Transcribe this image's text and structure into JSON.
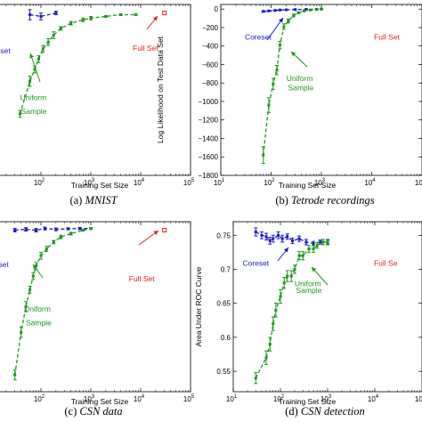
{
  "colors": {
    "coreset": "#1a1acc",
    "uniform": "#1a9a1a",
    "full": "#dd2222"
  },
  "chart_data": [
    {
      "type": "line",
      "caption_prefix": "(a)",
      "caption_title": "MNIST",
      "xlabel": "Training Set Size",
      "ylabel": "",
      "xscale": "log",
      "xlim": [
        10,
        100000
      ],
      "ylim": [
        0,
        1
      ],
      "xticks": [
        {
          "v": 100,
          "label": "10",
          "exp": "2"
        },
        {
          "v": 1000,
          "label": "10",
          "exp": "3"
        },
        {
          "v": 10000,
          "label": "10",
          "exp": "4"
        },
        {
          "v": 100000,
          "label": "10",
          "exp": "5"
        }
      ],
      "yticks": [],
      "series": [
        {
          "key": "coreset",
          "x": [
            60,
            100,
            200
          ],
          "y": [
            0.94,
            0.93,
            0.95
          ],
          "err": [
            0.03,
            0.02,
            0.01
          ]
        },
        {
          "key": "uniform",
          "x": [
            38,
            60,
            75,
            90,
            110,
            140,
            180,
            250,
            400,
            700,
            1000,
            2000,
            4000,
            8000
          ],
          "y": [
            0.36,
            0.55,
            0.62,
            0.68,
            0.74,
            0.78,
            0.82,
            0.86,
            0.89,
            0.91,
            0.92,
            0.93,
            0.94,
            0.94
          ],
          "err": [
            0.02,
            0.03,
            0.02,
            0.02,
            0.02,
            0.02,
            0.02,
            0.01,
            0.01,
            0.01,
            0.01,
            0.005,
            0.005,
            0.005
          ]
        }
      ],
      "full_set": {
        "x": 30000,
        "y": 0.95
      },
      "annotations": [
        {
          "text": "Full Set",
          "key": "full",
          "x": 12500,
          "y": 0.73
        },
        {
          "text": "Uniform",
          "key": "uniform",
          "x": 70,
          "y": 0.44
        },
        {
          "text": "Sample",
          "key": "uniform",
          "x": 72,
          "y": 0.36
        }
      ]
    },
    {
      "type": "line",
      "caption_prefix": "(b)",
      "caption_title": "Tetrode recordings",
      "xlabel": "Training Set Size",
      "ylabel": "Log Likelihood on Test Data Set",
      "xscale": "log",
      "xlim": [
        10,
        100000
      ],
      "ylim": [
        -1800,
        50
      ],
      "xticks": [
        {
          "v": 10,
          "label": "10",
          "exp": "1"
        },
        {
          "v": 100,
          "label": "10",
          "exp": "2"
        },
        {
          "v": 1000,
          "label": "10",
          "exp": "3"
        },
        {
          "v": 10000,
          "label": "10",
          "exp": "4"
        },
        {
          "v": 100000,
          "label": "10",
          "exp": "5"
        }
      ],
      "yticks": [
        {
          "v": 0,
          "label": "0"
        },
        {
          "v": -200,
          "label": "−200"
        },
        {
          "v": -400,
          "label": "−400"
        },
        {
          "v": -600,
          "label": "−600"
        },
        {
          "v": -800,
          "label": "−800"
        },
        {
          "v": -1000,
          "label": "−1000"
        },
        {
          "v": -1200,
          "label": "−1200"
        },
        {
          "v": -1400,
          "label": "−1400"
        },
        {
          "v": -1600,
          "label": "−1600"
        },
        {
          "v": -1800,
          "label": "−1800"
        }
      ],
      "series": [
        {
          "key": "coreset",
          "x": [
            70,
            90,
            120,
            150,
            200,
            300,
            500,
            800,
            1000
          ],
          "y": [
            -25,
            -20,
            -15,
            -10,
            -8,
            -5,
            -3,
            -2,
            0
          ],
          "err": [
            8,
            6,
            5,
            4,
            3,
            3,
            2,
            2,
            2
          ]
        },
        {
          "key": "uniform",
          "x": [
            70,
            90,
            110,
            130,
            150,
            180,
            220,
            280,
            350,
            450,
            600,
            800,
            1000
          ],
          "y": [
            -1580,
            -1040,
            -810,
            -660,
            -390,
            -190,
            -130,
            -70,
            -40,
            -20,
            -10,
            -5,
            0
          ],
          "err": [
            90,
            80,
            60,
            50,
            40,
            30,
            20,
            15,
            10,
            8,
            5,
            4,
            3
          ]
        }
      ],
      "full_set": null,
      "annotations": [
        {
          "text": "Coreset",
          "key": "coreset",
          "x": 55,
          "y": -330
        },
        {
          "text": "Uniform",
          "key": "uniform",
          "x": 370,
          "y": -780
        },
        {
          "text": "Sample",
          "key": "uniform",
          "x": 390,
          "y": -880
        },
        {
          "text": "Full Set",
          "key": "full",
          "x": 20000,
          "y": -330
        }
      ]
    },
    {
      "type": "line",
      "caption_prefix": "(c)",
      "caption_title": "CSN data",
      "xlabel": "Training Set Size",
      "ylabel": "",
      "xscale": "log",
      "xlim": [
        10,
        100000
      ],
      "ylim": [
        0,
        1
      ],
      "xticks": [
        {
          "v": 100,
          "label": "10",
          "exp": "2"
        },
        {
          "v": 1000,
          "label": "10",
          "exp": "3"
        },
        {
          "v": 10000,
          "label": "10",
          "exp": "4"
        },
        {
          "v": 100000,
          "label": "10",
          "exp": "5"
        }
      ],
      "yticks": [],
      "series": [
        {
          "key": "coreset",
          "x": [
            30,
            50,
            80,
            120,
            200,
            350,
            600,
            1000
          ],
          "y": [
            0.95,
            0.955,
            0.95,
            0.96,
            0.955,
            0.958,
            0.96,
            0.96
          ],
          "err": [
            0.01,
            0.01,
            0.01,
            0.008,
            0.008,
            0.006,
            0.006,
            0.005
          ]
        },
        {
          "key": "uniform",
          "x": [
            30,
            40,
            50,
            60,
            70,
            80,
            100,
            130,
            180,
            250,
            400,
            700,
            1000
          ],
          "y": [
            0.1,
            0.35,
            0.5,
            0.6,
            0.68,
            0.74,
            0.8,
            0.84,
            0.88,
            0.91,
            0.93,
            0.95,
            0.96
          ],
          "err": [
            0.03,
            0.03,
            0.03,
            0.02,
            0.02,
            0.02,
            0.02,
            0.015,
            0.01,
            0.01,
            0.008,
            0.005,
            0.005
          ]
        }
      ],
      "full_set": {
        "x": 30000,
        "y": 0.95
      },
      "annotations": [
        {
          "text": "Full Set",
          "key": "full",
          "x": 10500,
          "y": 0.65
        },
        {
          "text": "Uniform",
          "key": "uniform",
          "x": 85,
          "y": 0.47
        },
        {
          "text": "Sample",
          "key": "uniform",
          "x": 90,
          "y": 0.39
        }
      ]
    },
    {
      "type": "line",
      "caption_prefix": "(d)",
      "caption_title": "CSN detection",
      "xlabel": "Training Set Size",
      "ylabel": "Area Under ROC Curve",
      "xscale": "log",
      "xlim": [
        10,
        100000
      ],
      "ylim": [
        0.52,
        0.77
      ],
      "xticks": [
        {
          "v": 10,
          "label": "10",
          "exp": "1"
        },
        {
          "v": 100,
          "label": "10",
          "exp": "2"
        },
        {
          "v": 1000,
          "label": "10",
          "exp": "3"
        },
        {
          "v": 10000,
          "label": "10",
          "exp": "4"
        },
        {
          "v": 100000,
          "label": "10",
          "exp": "5"
        }
      ],
      "yticks": [
        {
          "v": 0.55,
          "label": "0.55"
        },
        {
          "v": 0.6,
          "label": "0.6"
        },
        {
          "v": 0.65,
          "label": "0.65"
        },
        {
          "v": 0.7,
          "label": "0.7"
        },
        {
          "v": 0.75,
          "label": "0.75"
        }
      ],
      "series": [
        {
          "key": "coreset",
          "x": [
            30,
            40,
            50,
            60,
            70,
            90,
            110,
            140,
            180,
            250,
            350,
            500,
            700,
            1000
          ],
          "y": [
            0.755,
            0.75,
            0.748,
            0.742,
            0.745,
            0.75,
            0.745,
            0.748,
            0.742,
            0.745,
            0.74,
            0.738,
            0.74,
            0.74
          ],
          "err": [
            0.006,
            0.005,
            0.005,
            0.005,
            0.005,
            0.005,
            0.005,
            0.004,
            0.004,
            0.004,
            0.004,
            0.003,
            0.003,
            0.003
          ]
        },
        {
          "key": "uniform",
          "x": [
            30,
            50,
            60,
            70,
            80,
            100,
            120,
            140,
            170,
            200,
            250,
            300,
            400,
            500,
            600,
            800,
            1000
          ],
          "y": [
            0.54,
            0.57,
            0.59,
            0.62,
            0.64,
            0.66,
            0.68,
            0.69,
            0.69,
            0.7,
            0.72,
            0.72,
            0.73,
            0.73,
            0.735,
            0.74,
            0.74
          ],
          "err": [
            0.008,
            0.01,
            0.01,
            0.01,
            0.01,
            0.01,
            0.008,
            0.008,
            0.008,
            0.006,
            0.006,
            0.006,
            0.005,
            0.005,
            0.004,
            0.004,
            0.004
          ]
        }
      ],
      "full_set": null,
      "annotations": [
        {
          "text": "Coreset",
          "key": "coreset",
          "x": 30,
          "y": 0.705
        },
        {
          "text": "Uniform",
          "key": "uniform",
          "x": 380,
          "y": 0.675
        },
        {
          "text": "Sample",
          "key": "uniform",
          "x": 400,
          "y": 0.665
        },
        {
          "text": "Full Se",
          "key": "full",
          "x": 17000,
          "y": 0.705
        }
      ]
    }
  ],
  "extra_labels": {
    "coreset_a": "Coreset",
    "coreset_c": "Coreset"
  }
}
